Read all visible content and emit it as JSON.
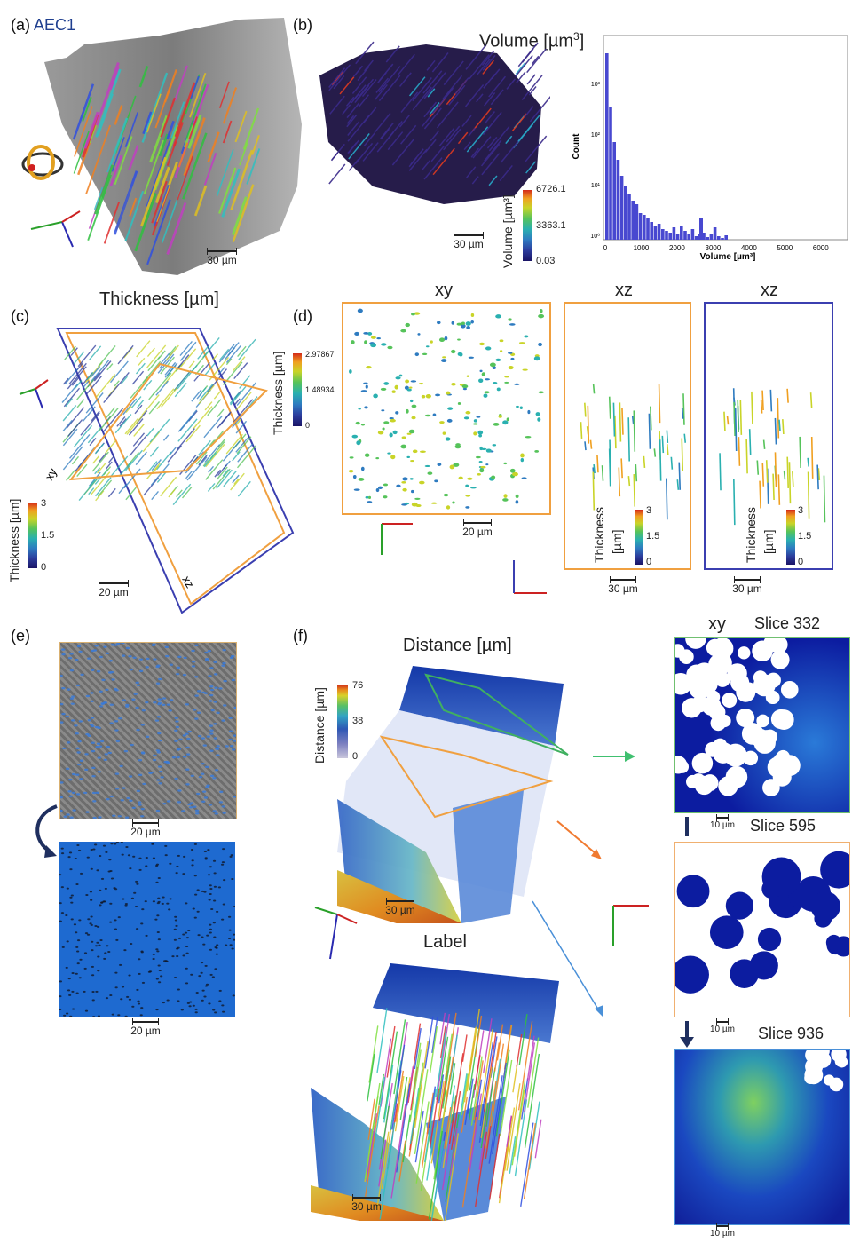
{
  "panel_a": {
    "label": "(a)",
    "sample": "AEC1",
    "scale": "30 µm"
  },
  "panel_b": {
    "label": "(b)",
    "title": "Volume [µm",
    "title_sup": "3",
    "title_end": "]",
    "scale": "30 µm",
    "colorbar": {
      "label": "Volume [µm³]",
      "max": "6726.1",
      "mid": "3363.1",
      "min": "0.03"
    },
    "histogram": {
      "ylabel": "Count",
      "xlabel": "Volume [µm³]",
      "xticks": [
        "0",
        "1000",
        "2000",
        "3000",
        "4000",
        "5000",
        "6000"
      ],
      "yticks": [
        "10⁰",
        "10¹",
        "10²",
        "10³"
      ]
    }
  },
  "panel_c": {
    "label": "(c)",
    "title": "Thickness [µm]",
    "scale": "20 µm",
    "plane_xy": "xy",
    "plane_xz": "xz",
    "colorbar_left": {
      "label": "Thickness [µm]",
      "max": "3",
      "mid": "1.5",
      "min": "0"
    },
    "colorbar_right": {
      "label": "Thickness [µm]",
      "max": "2.97867",
      "mid": "1.48934",
      "min": "0"
    }
  },
  "panel_d": {
    "label": "(d)",
    "views": [
      {
        "title": "xy",
        "scale": "20 µm"
      },
      {
        "title": "xz",
        "scale": "30 µm",
        "cb_label1": "Thickness",
        "cb_label2": "[µm]",
        "max": "3",
        "mid": "1.5",
        "min": "0"
      },
      {
        "title": "xz",
        "scale": "30 µm",
        "cb_label1": "Thickness",
        "cb_label2": "[µm]",
        "max": "3",
        "mid": "1.5",
        "min": "0"
      }
    ]
  },
  "panel_e": {
    "label": "(e)",
    "scale_top": "20 µm",
    "scale_bottom": "20 µm"
  },
  "panel_f": {
    "label": "(f)",
    "title_distance": "Distance [µm]",
    "title_label": "Label",
    "colorbar": {
      "label": "Distance [µm]",
      "max": "76",
      "mid": "38",
      "min": "0"
    },
    "scale_top": "30 µm",
    "scale_bottom": "30 µm",
    "slices_header": "xy",
    "slices": [
      {
        "name": "Slice 332",
        "scale": "10 µm"
      },
      {
        "name": "Slice 595",
        "scale": "10 µm"
      },
      {
        "name": "Slice 936",
        "scale": "10 µm"
      }
    ]
  }
}
